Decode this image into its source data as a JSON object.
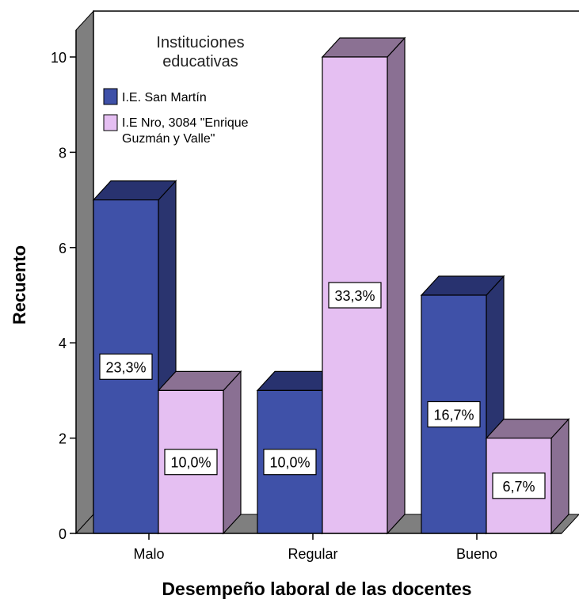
{
  "chart_data": {
    "type": "bar",
    "categories": [
      "Malo",
      "Regular",
      "Bueno"
    ],
    "series": [
      {
        "name": "I.E. San Martín",
        "values": [
          7,
          3,
          5
        ],
        "labels": [
          "23,3%",
          "10,0%",
          "16,7%"
        ]
      },
      {
        "name": "I.E Nro, 3084 \"Enrique Guzmán y Valle\"",
        "values": [
          3,
          10,
          2
        ],
        "labels": [
          "10,0%",
          "33,3%",
          "6,7%"
        ]
      }
    ],
    "xlabel": "Desempeño laboral de las docentes",
    "ylabel": "Recuento",
    "ylim": [
      0,
      11
    ],
    "yticks": [
      "0",
      "2",
      "4",
      "6",
      "8",
      "10"
    ],
    "legend_title": "Instituciones educativas",
    "legend_placement": "top-left",
    "grid": false,
    "colors": {
      "series1_front": "#3f51a8",
      "series1_top": "#28326f",
      "series1_side": "#2a346f",
      "series2_front": "#e5bff2",
      "series2_top": "#8b7193",
      "series2_side": "#8a7093",
      "floor": "#7f7f7f",
      "wall": "#7f7f7f"
    }
  }
}
